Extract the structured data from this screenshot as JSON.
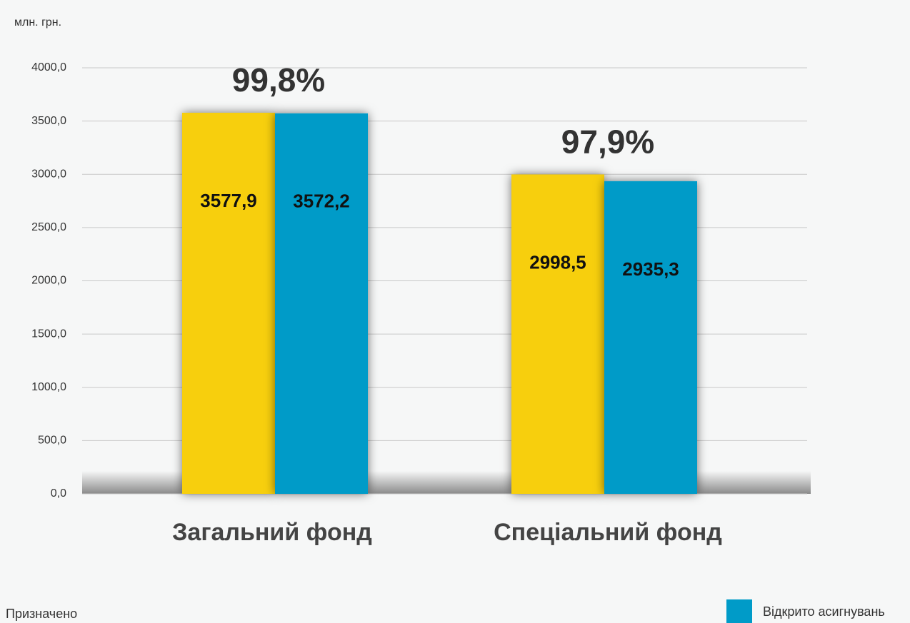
{
  "chart_data": {
    "type": "bar",
    "y_axis_label": "млн. грн.",
    "categories": [
      "Загальний фонд",
      "Спеціальний фонд"
    ],
    "series": [
      {
        "name": "Призначено",
        "color": "#f7cf0d",
        "values": [
          3577.9,
          2998.5
        ],
        "value_labels": [
          "3577,9",
          "2998,5"
        ]
      },
      {
        "name": "Відкрито асигнувань",
        "color": "#009bc8",
        "values": [
          3572.2,
          2935.3
        ],
        "value_labels": [
          "3572,2",
          "2935,3"
        ]
      }
    ],
    "annotations": [
      "99,8%",
      "97,9%"
    ],
    "ylim": [
      0,
      4000
    ],
    "yticks": [
      {
        "value": 0,
        "label": "0,0"
      },
      {
        "value": 500,
        "label": "500,0"
      },
      {
        "value": 1000,
        "label": "1000,0"
      },
      {
        "value": 1500,
        "label": "1500,0"
      },
      {
        "value": 2000,
        "label": "2000,0"
      },
      {
        "value": 2500,
        "label": "2500,0"
      },
      {
        "value": 3000,
        "label": "3000,0"
      },
      {
        "value": 3500,
        "label": "3500,0"
      },
      {
        "value": 4000,
        "label": "4000,0"
      }
    ],
    "grid": true
  }
}
